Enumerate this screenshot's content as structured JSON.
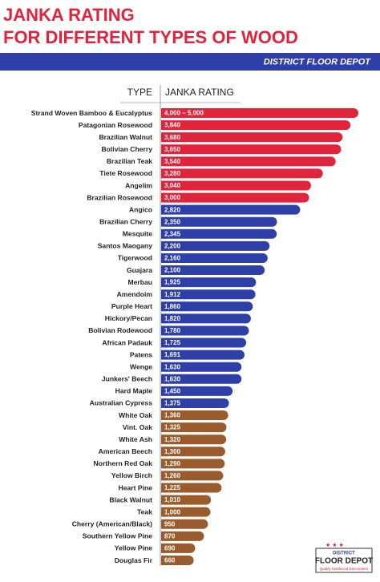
{
  "chart_data": {
    "type": "bar",
    "orientation": "horizontal",
    "title": "JANKA RATING",
    "subtitle": "FOR DIFFERENT TYPES OF WOOD",
    "brand": "DISTRICT FLOOR DEPOT",
    "category_header": "TYPE",
    "value_header": "JANKA RATING",
    "categories": [
      "Strand Woven Bamboo & Eucalyptus",
      "Patagonian Rosewood",
      "Brazilian Walnut",
      "Bolivian Cherry",
      "Brazilian Teak",
      "Tiete Rosewood",
      "Angelim",
      "Brazilian Rosewood",
      "Angico",
      "Brazilian Cherry",
      "Mesquite",
      "Santos Maogany",
      "Tigerwood",
      "Guajara",
      "Merbau",
      "Amendoim",
      "Purple Heart",
      "Hickory/Pecan",
      "Bolivian Rodewood",
      "African Padauk",
      "Patens",
      "Wenge",
      "Junkers' Beech",
      "Hard Maple",
      "Australian Cypress",
      "White Oak",
      "Vint. Oak",
      "White Ash",
      "American Beech",
      "Northern Red Oak",
      "Yellow Birch",
      "Heart Pine",
      "Black Walnut",
      "Teak",
      "Cherry (American/Black)",
      "Southern Yellow Pine",
      "Yellow Pine",
      "Douglas Fir"
    ],
    "values": [
      4000,
      3840,
      3680,
      3650,
      3540,
      3280,
      3040,
      3000,
      2820,
      2350,
      2345,
      2200,
      2160,
      2100,
      1925,
      1912,
      1860,
      1820,
      1780,
      1725,
      1691,
      1630,
      1630,
      1450,
      1375,
      1360,
      1325,
      1320,
      1300,
      1290,
      1260,
      1225,
      1010,
      1000,
      950,
      870,
      690,
      660
    ],
    "value_labels": [
      "4,000 – 5,000",
      "3,840",
      "3,680",
      "3,650",
      "3,540",
      "3,280",
      "3,040",
      "3,000",
      "2,820",
      "2,350",
      "2,345",
      "2,200",
      "2,160",
      "2,100",
      "1,925",
      "1,912",
      "1,860",
      "1,820",
      "1,780",
      "1,725",
      "1,691",
      "1,630",
      "1,630",
      "1,450",
      "1,375",
      "1,360",
      "1,325",
      "1,320",
      "1,300",
      "1,290",
      "1,260",
      "1,225",
      "1,010",
      "1,000",
      "950",
      "870",
      "690",
      "660"
    ],
    "colors": [
      "#e2233c",
      "#e2233c",
      "#e2233c",
      "#e2233c",
      "#e2233c",
      "#e2233c",
      "#e2233c",
      "#e2233c",
      "#2e3fa8",
      "#2e3fa8",
      "#2e3fa8",
      "#2e3fa8",
      "#2e3fa8",
      "#2e3fa8",
      "#2e3fa8",
      "#2e3fa8",
      "#2e3fa8",
      "#2e3fa8",
      "#2e3fa8",
      "#2e3fa8",
      "#2e3fa8",
      "#2e3fa8",
      "#2e3fa8",
      "#2e3fa8",
      "#2e3fa8",
      "#9a5c2c",
      "#9a5c2c",
      "#9a5c2c",
      "#9a5c2c",
      "#9a5c2c",
      "#9a5c2c",
      "#9a5c2c",
      "#9a5c2c",
      "#9a5c2c",
      "#9a5c2c",
      "#9a5c2c",
      "#9a5c2c",
      "#9a5c2c"
    ],
    "xlim": [
      0,
      4000
    ],
    "logo": {
      "top": "DISTRICT",
      "main": "FLOOR DEPOT",
      "tagline": "Quality Hardwood Discounters"
    }
  }
}
